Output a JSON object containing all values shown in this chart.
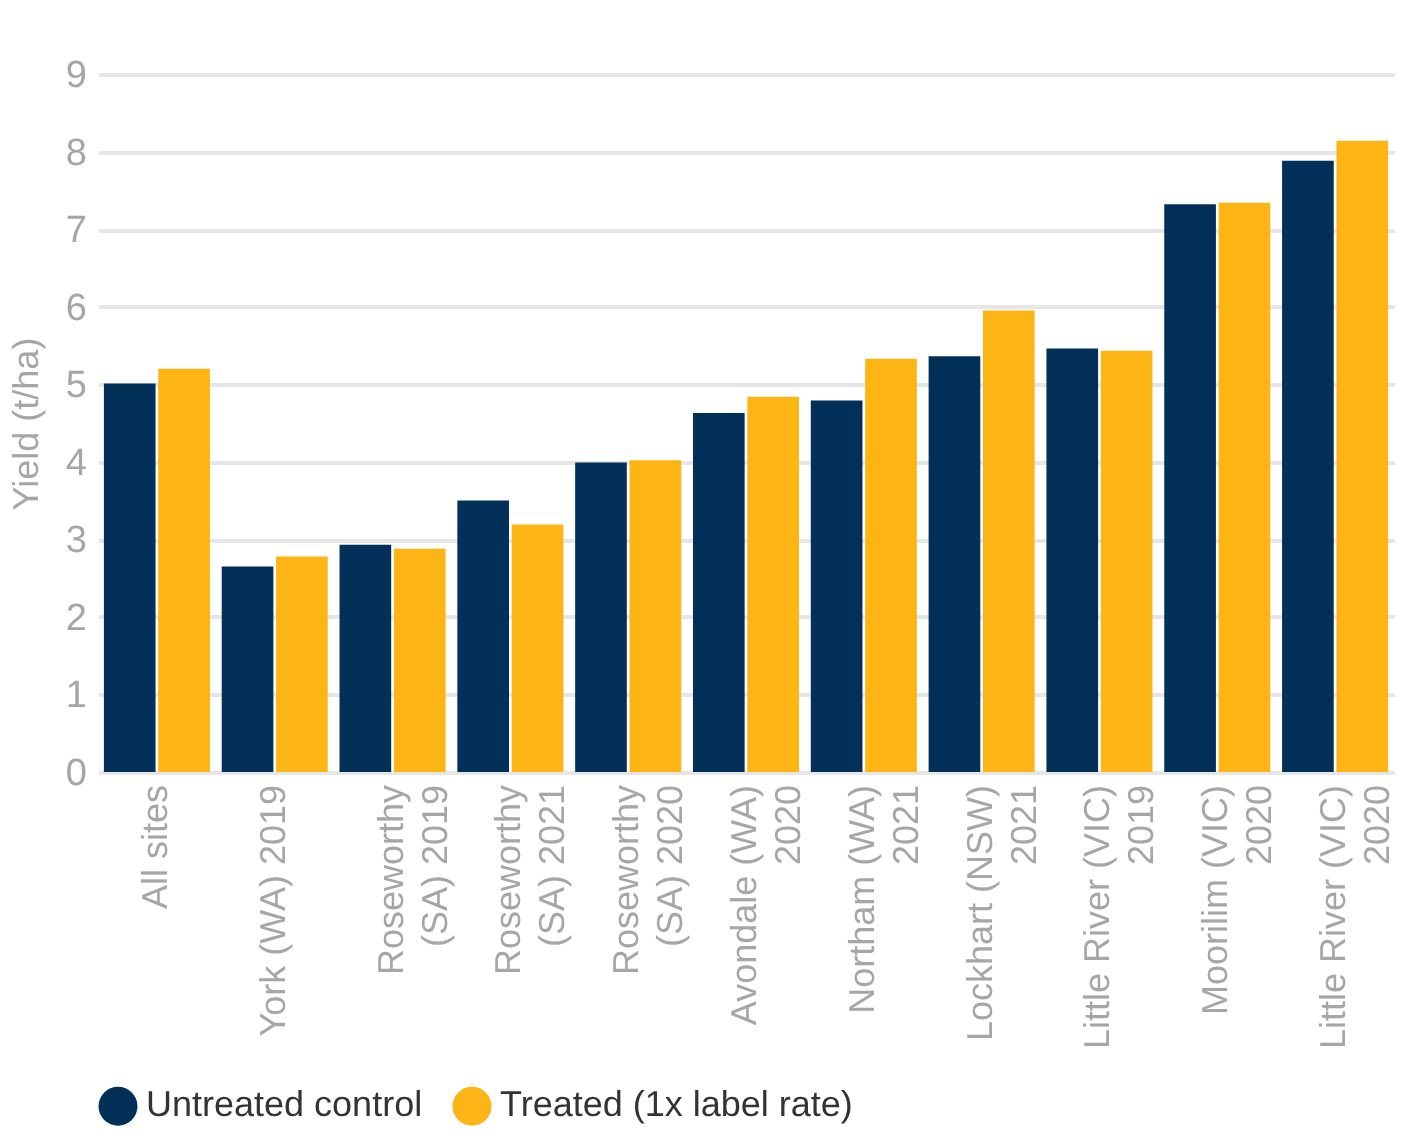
{
  "chart_data": {
    "type": "bar",
    "ylabel": "Yield (t/ha)",
    "categories": [
      "All sites",
      "York (WA) 2019",
      "Roseworthy (SA) 2019",
      "Roseworthy (SA) 2021",
      "Roseworthy (SA) 2020",
      "Avondale (WA) 2020",
      "Northam (WA) 2021",
      "Lockhart (NSW) 2021",
      "Little River (VIC) 2019",
      "Moorilim (VIC) 2020",
      "Little River (VIC) 2020"
    ],
    "series": [
      {
        "name": "Untreated control",
        "color": "#023059",
        "values": [
          5.01,
          2.65,
          2.93,
          3.5,
          3.99,
          4.63,
          4.79,
          5.36,
          5.46,
          7.32,
          7.88
        ]
      },
      {
        "name": "Treated (1x label rate)",
        "color": "#fdb515",
        "values": [
          5.2,
          2.78,
          2.88,
          3.19,
          4.02,
          4.84,
          5.33,
          5.95,
          5.43,
          7.34,
          8.14
        ]
      }
    ],
    "ylim": [
      0,
      9
    ],
    "yticks": [
      0,
      1,
      2,
      3,
      4,
      5,
      6,
      7,
      8,
      9
    ],
    "grid": "y",
    "legend": "bottom"
  }
}
